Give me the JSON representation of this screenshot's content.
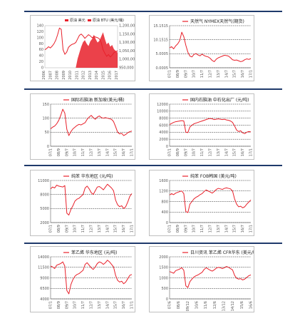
{
  "colors": {
    "line": "#e8202a",
    "area": "#e8202a",
    "grid": "#000000",
    "divider": "#1f3a6b"
  },
  "chart_data": [
    {
      "type": "area",
      "legend": [
        "原油 美元",
        "原油 BTU (美元/桶)"
      ],
      "yticks_left": [
        "140",
        "120",
        "100",
        "80",
        "60",
        "40",
        "20",
        "0"
      ],
      "yticks_right": [
        "1,200,000",
        "1,150,000",
        "1,100,000",
        "1,050,000",
        "1,000,000",
        "950,000"
      ],
      "xticks": [
        "2006",
        "2007",
        "2008",
        "2009",
        "2010",
        "2011",
        "2012",
        "2013",
        "2014",
        "2015",
        "2016",
        "2017"
      ],
      "ylim": [
        0,
        140
      ],
      "x": [
        0,
        1,
        2,
        3,
        4,
        5,
        6,
        7,
        8,
        9,
        10,
        11,
        12,
        13,
        14,
        15,
        16,
        17,
        18,
        19,
        20,
        21,
        22,
        23,
        24,
        25,
        26,
        27,
        28,
        29,
        30,
        31,
        32,
        33,
        34,
        35,
        36,
        37,
        38,
        39,
        40
      ],
      "series": [
        {
          "values": [
            60,
            64,
            70,
            66,
            72,
            80,
            92,
            110,
            132,
            128,
            60,
            45,
            52,
            68,
            74,
            78,
            80,
            84,
            96,
            108,
            112,
            106,
            98,
            104,
            110,
            106,
            100,
            104,
            102,
            100,
            96,
            84,
            60,
            48,
            38,
            44,
            36,
            42,
            50,
            54,
            56
          ]
        },
        {
          "values": [
            0,
            0,
            0,
            0,
            0,
            0,
            0,
            0,
            0,
            0,
            0,
            0,
            0,
            0,
            0,
            0,
            0,
            0,
            30,
            50,
            70,
            85,
            92,
            80,
            72,
            88,
            96,
            110,
            95,
            84,
            90,
            104,
            118,
            96,
            78,
            84,
            70,
            76,
            62,
            56,
            50
          ]
        }
      ]
    },
    {
      "type": "line",
      "title": "天然气 NYMEX天然气(期货)",
      "yticks": [
        "15.1515",
        "10.1515",
        "5.0005",
        "0.0005"
      ],
      "xticks": [
        "07/1",
        "08/9",
        "09/7",
        "10/7",
        "11/7",
        "12/7",
        "13/7",
        "14/7",
        "15/7",
        "16/7",
        "17/1"
      ],
      "ylim": [
        0,
        15.15
      ],
      "values": [
        7.2,
        7.6,
        6.8,
        7.9,
        8.6,
        9.8,
        12.8,
        11.2,
        8.1,
        5.6,
        4.2,
        3.9,
        4.8,
        5.1,
        4.6,
        4.3,
        4.9,
        4.4,
        4.1,
        3.9,
        3.4,
        2.6,
        2.2,
        3.1,
        3.6,
        3.9,
        4.2,
        4.5,
        4.4,
        4.2,
        3.6,
        2.9,
        2.7,
        2.8,
        2.5,
        2.2,
        2.4,
        2.9,
        3.2,
        3.0,
        3.3
      ]
    },
    {
      "type": "line",
      "title": "国际石脑油 新加坡(美元/桶)",
      "yticks": [
        "150",
        "100",
        "50",
        "0"
      ],
      "xticks": [
        "07/1",
        "08/9",
        "09/7",
        "10/7",
        "11/7",
        "12/7",
        "13/7",
        "14/7",
        "15/7",
        "16/7",
        "17/1"
      ],
      "ylim": [
        0,
        150
      ],
      "values": [
        62,
        68,
        72,
        80,
        92,
        110,
        132,
        118,
        60,
        38,
        52,
        62,
        68,
        74,
        78,
        76,
        80,
        84,
        96,
        104,
        110,
        102,
        96,
        104,
        108,
        102,
        100,
        102,
        100,
        98,
        96,
        88,
        70,
        50,
        44,
        46,
        38,
        42,
        48,
        52,
        54
      ]
    },
    {
      "type": "line",
      "title": "国内石脑油 中石化出厂 (元/吨)",
      "yticks": [
        "12000",
        "10000",
        "8000",
        "6000",
        "4000",
        "2000",
        "0"
      ],
      "xticks": [
        "07/1",
        "08/9",
        "09/7",
        "10/7",
        "11/7",
        "12/7",
        "13/7",
        "14/7",
        "15/7",
        "16/7",
        "17/1"
      ],
      "ylim": [
        0,
        12000
      ],
      "values": [
        6200,
        6500,
        6800,
        7000,
        7100,
        7200,
        7300,
        7200,
        4000,
        3900,
        5500,
        6000,
        6400,
        6600,
        6800,
        7000,
        7200,
        7400,
        7600,
        7800,
        7900,
        7800,
        7600,
        7700,
        7800,
        7700,
        7600,
        7700,
        7500,
        7400,
        7200,
        6800,
        5800,
        4600,
        4200,
        4400,
        3800,
        3600,
        4000,
        4200,
        4100
      ]
    },
    {
      "type": "line",
      "title": "纯苯 华东地区 (元/吨)",
      "yticks": [
        "11000",
        "8000",
        "5000",
        "2000"
      ],
      "xticks": [
        "07/1",
        "08/9",
        "09/7",
        "10/7",
        "11/7",
        "12/7",
        "13/7",
        "14/7",
        "15/7",
        "16/7",
        "17/1"
      ],
      "ylim": [
        2000,
        11000
      ],
      "values": [
        9200,
        9600,
        9400,
        10000,
        9800,
        9700,
        9600,
        9900,
        4000,
        3600,
        4800,
        5600,
        6600,
        7000,
        7200,
        7600,
        8000,
        9400,
        9800,
        9200,
        8400,
        8000,
        8800,
        9600,
        9700,
        9400,
        9000,
        9600,
        10200,
        9800,
        9400,
        8800,
        6800,
        5800,
        5400,
        5600,
        5000,
        5400,
        6400,
        7600,
        8200
      ]
    },
    {
      "type": "line",
      "title": "纯苯 FOB韩国 (美元/吨)",
      "yticks": [
        "1600",
        "1200",
        "800",
        "400",
        "0"
      ],
      "xticks": [
        "07/1",
        "08/9",
        "09/7",
        "10/7",
        "11/7",
        "12/7",
        "13/7",
        "14/7",
        "15/7",
        "16/7",
        "17/1"
      ],
      "ylim": [
        0,
        1600
      ],
      "values": [
        1050,
        1100,
        1060,
        1120,
        1150,
        1180,
        1200,
        1100,
        420,
        380,
        700,
        800,
        900,
        960,
        1000,
        1060,
        1100,
        1180,
        1240,
        1200,
        1160,
        1120,
        1180,
        1260,
        1300,
        1280,
        1260,
        1300,
        1320,
        1300,
        1280,
        1200,
        900,
        700,
        600,
        620,
        560,
        600,
        700,
        780,
        860
      ]
    },
    {
      "type": "line",
      "title": "苯乙烯 华东地区 (元/吨)",
      "yticks": [
        "14000",
        "11500",
        "9000",
        "6500",
        "4000"
      ],
      "xticks": [
        "07/1",
        "08/9",
        "09/7",
        "10/7",
        "11/7",
        "12/7",
        "13/7",
        "14/7",
        "15/7",
        "16/7",
        "17/1"
      ],
      "ylim": [
        4000,
        14000
      ],
      "values": [
        11800,
        11600,
        11200,
        12000,
        12200,
        12400,
        12800,
        11800,
        6000,
        5200,
        7400,
        8600,
        9400,
        9800,
        10000,
        10400,
        10800,
        12200,
        12600,
        12000,
        11400,
        11000,
        11600,
        12400,
        12800,
        12600,
        12200,
        12600,
        13200,
        12800,
        12200,
        11600,
        9600,
        8400,
        8000,
        8200,
        7600,
        8000,
        8800,
        9600,
        9800
      ]
    },
    {
      "type": "line",
      "title": "日川资讯 苯乙烯 CFR华东 (美元/吨)",
      "yticks": [
        "2000",
        "1500",
        "1000",
        "500",
        "0"
      ],
      "xticks": [
        "07/6",
        "08/6",
        "09/12",
        "10/6",
        "11/6",
        "12/6",
        "13/12",
        "14/12",
        "15/6",
        "16/6"
      ],
      "ylim": [
        0,
        2000
      ],
      "values": [
        1300,
        1260,
        1220,
        1340,
        1380,
        1420,
        1480,
        1360,
        620,
        540,
        820,
        940,
        1040,
        1100,
        1140,
        1200,
        1260,
        1400,
        1480,
        1420,
        1360,
        1320,
        1380,
        1460,
        1500,
        1480,
        1440,
        1480,
        1540,
        1500,
        1440,
        1380,
        1120,
        980,
        940,
        960,
        900,
        940,
        1020,
        1100,
        1140
      ]
    }
  ]
}
